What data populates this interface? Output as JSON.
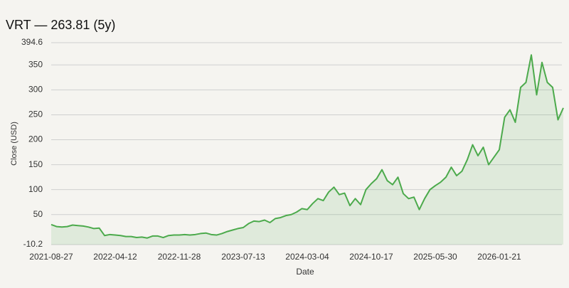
{
  "chart_data": {
    "type": "line",
    "title": "VRT — 263.81 (5y)",
    "xlabel": "Date",
    "ylabel": "Close (USD)",
    "categories": [
      "2021-08-27",
      null,
      null,
      null,
      null,
      null,
      null,
      null,
      null,
      null,
      null,
      null,
      "2022-04-12",
      null,
      null,
      null,
      null,
      null,
      null,
      null,
      null,
      null,
      null,
      null,
      "2022-11-28",
      null,
      null,
      null,
      null,
      null,
      null,
      null,
      null,
      null,
      null,
      null,
      "2023-07-13",
      null,
      null,
      null,
      null,
      null,
      null,
      null,
      null,
      null,
      null,
      null,
      "2024-03-04",
      null,
      null,
      null,
      null,
      null,
      null,
      null,
      null,
      null,
      null,
      null,
      "2024-10-17",
      null,
      null,
      null,
      null,
      null,
      null,
      null,
      null,
      null,
      null,
      null,
      "2025-05-30",
      null,
      null,
      null,
      null,
      null,
      null,
      null,
      null,
      null,
      null,
      null,
      "2026-01-21",
      null,
      null,
      null,
      null,
      null,
      null,
      null,
      null,
      null,
      null,
      null,
      null
    ],
    "series": [
      {
        "name": "VRT",
        "color": "#4caa4c",
        "values": [
          30,
          26,
          25,
          26,
          29,
          28,
          27,
          25,
          22,
          23,
          8,
          10,
          9,
          8,
          6,
          6,
          4,
          5,
          3,
          7,
          7,
          4,
          8,
          9,
          9,
          10,
          9,
          10,
          12,
          13,
          10,
          9,
          12,
          16,
          19,
          22,
          24,
          32,
          37,
          36,
          39,
          34,
          42,
          44,
          48,
          50,
          55,
          62,
          60,
          72,
          82,
          78,
          95,
          105,
          90,
          93,
          68,
          82,
          70,
          100,
          112,
          122,
          140,
          118,
          110,
          125,
          92,
          82,
          85,
          60,
          82,
          100,
          108,
          115,
          125,
          145,
          128,
          137,
          160,
          190,
          168,
          185,
          150,
          165,
          180,
          245,
          260,
          235,
          305,
          315,
          370,
          290,
          355,
          315,
          305,
          240,
          263.81
        ]
      }
    ],
    "ylim": [
      -10.2,
      394.6
    ],
    "yticks": [
      -10.2,
      50,
      100,
      150,
      200,
      250,
      300,
      350,
      394.6
    ],
    "grid": true
  }
}
